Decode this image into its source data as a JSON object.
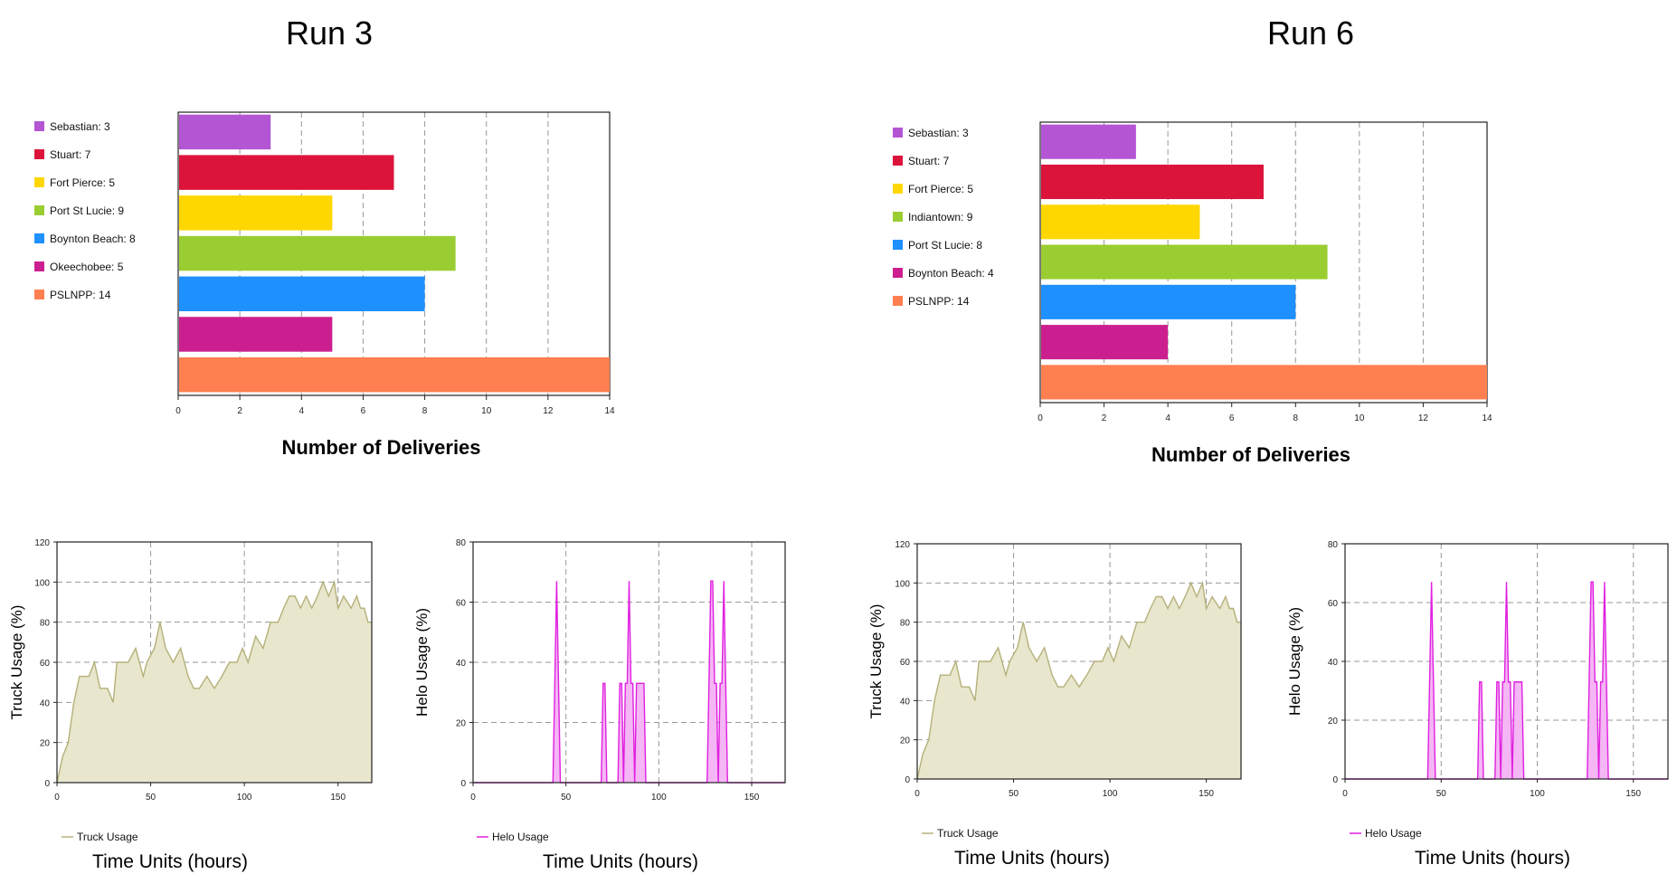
{
  "run_titles": [
    "Run 3",
    "Run 6"
  ],
  "colors": {
    "truck_line": "#b5b07a",
    "truck_fill": "#e8e6cc",
    "helo_line": "#e020e0",
    "helo_fill": "#f4b6f4",
    "grid": "#999999"
  },
  "chart_data": [
    {
      "type": "bar",
      "orientation": "horizontal",
      "run": "Run 3",
      "categories": [
        "Sebastian",
        "Stuart",
        "Fort Pierce",
        "Port St Lucie",
        "Boynton Beach",
        "Okeechobee",
        "PSLNPP"
      ],
      "values": [
        3,
        7,
        5,
        9,
        8,
        5,
        14
      ],
      "legend": [
        "Sebastian: 3",
        "Stuart: 7",
        "Fort Pierce: 5",
        "Port St Lucie: 9",
        "Boynton Beach: 8",
        "Okeechobee: 5",
        "PSLNPP: 14"
      ],
      "colors": [
        "#b455d4",
        "#dc143c",
        "#ffd700",
        "#9acd32",
        "#1e90ff",
        "#cc1f8f",
        "#ff7f50"
      ],
      "xlabel": "Number of Deliveries",
      "xlim": [
        0,
        14
      ],
      "xticks": [
        0,
        2,
        4,
        6,
        8,
        10,
        12,
        14
      ],
      "legend_position": "left",
      "grid": true
    },
    {
      "type": "bar",
      "orientation": "horizontal",
      "run": "Run 6",
      "categories": [
        "Sebastian",
        "Stuart",
        "Fort Pierce",
        "Indiantown",
        "Port St Lucie",
        "Boynton Beach",
        "PSLNPP"
      ],
      "values": [
        3,
        7,
        5,
        9,
        8,
        4,
        14
      ],
      "legend": [
        "Sebastian: 3",
        "Stuart: 7",
        "Fort Pierce: 5",
        "Indiantown: 9",
        "Port St Lucie: 8",
        "Boynton Beach: 4",
        "PSLNPP: 14"
      ],
      "colors": [
        "#b455d4",
        "#dc143c",
        "#ffd700",
        "#9acd32",
        "#1e90ff",
        "#cc1f8f",
        "#ff7f50"
      ],
      "xlabel": "Number of Deliveries",
      "xlim": [
        0,
        14
      ],
      "xticks": [
        0,
        2,
        4,
        6,
        8,
        10,
        12,
        14
      ],
      "legend_position": "left",
      "grid": true
    },
    {
      "type": "area",
      "run": "Run 3",
      "series_name": "Truck Usage",
      "legend": "Truck Usage",
      "ylabel": "Truck Usage (%)",
      "xlabel": "Time Units (hours)",
      "xlim": [
        0,
        168
      ],
      "ylim": [
        0,
        120
      ],
      "xticks": [
        0,
        50,
        100,
        150
      ],
      "yticks": [
        0,
        20,
        40,
        60,
        80,
        100,
        120
      ],
      "legend_position": "bottom-left",
      "grid": true,
      "x": [
        0,
        3,
        6,
        9,
        12,
        14,
        17,
        20,
        23,
        27,
        30,
        32,
        35,
        38,
        42,
        46,
        48,
        52,
        55,
        58,
        62,
        66,
        70,
        73,
        76,
        80,
        84,
        88,
        92,
        96,
        99,
        102,
        106,
        110,
        114,
        118,
        121,
        124,
        127,
        130,
        133,
        136,
        139,
        142,
        145,
        148,
        150,
        153,
        157,
        160,
        162,
        164,
        166,
        168
      ],
      "y": [
        0,
        13,
        20,
        40,
        53,
        53,
        53,
        60,
        47,
        47,
        40,
        60,
        60,
        60,
        67,
        53,
        60,
        67,
        80,
        67,
        60,
        67,
        53,
        47,
        47,
        53,
        47,
        53,
        60,
        60,
        67,
        60,
        73,
        67,
        80,
        80,
        87,
        93,
        93,
        87,
        93,
        87,
        93,
        100,
        93,
        100,
        87,
        93,
        87,
        93,
        87,
        87,
        80,
        80
      ]
    },
    {
      "type": "area",
      "run": "Run 3",
      "series_name": "Helo Usage",
      "legend": "Helo Usage",
      "ylabel": "Helo Usage (%)",
      "xlabel": "Time Units (hours)",
      "xlim": [
        0,
        168
      ],
      "ylim": [
        0,
        80
      ],
      "xticks": [
        0,
        50,
        100,
        150
      ],
      "yticks": [
        0,
        20,
        40,
        60,
        80
      ],
      "legend_position": "bottom-left",
      "grid": true,
      "x": [
        0,
        43,
        44,
        45,
        46,
        47,
        48,
        69,
        70,
        71,
        72,
        78,
        79,
        80,
        81,
        82,
        83,
        84,
        85,
        86,
        87,
        88,
        89,
        90,
        91,
        92,
        93,
        94,
        126,
        127,
        128,
        129,
        130,
        131,
        132,
        133,
        134,
        135,
        136,
        137,
        138,
        168
      ],
      "y": [
        0,
        0,
        33,
        67,
        33,
        0,
        0,
        0,
        33,
        33,
        0,
        0,
        33,
        33,
        0,
        33,
        33,
        67,
        33,
        33,
        0,
        33,
        33,
        33,
        33,
        33,
        0,
        0,
        0,
        33,
        67,
        67,
        33,
        33,
        0,
        33,
        33,
        67,
        33,
        0,
        0,
        0
      ]
    },
    {
      "type": "area",
      "run": "Run 6",
      "series_name": "Truck Usage",
      "legend": "Truck Usage",
      "ylabel": "Truck Usage (%)",
      "xlabel": "Time Units (hours)",
      "xlim": [
        0,
        168
      ],
      "ylim": [
        0,
        120
      ],
      "xticks": [
        0,
        50,
        100,
        150
      ],
      "yticks": [
        0,
        20,
        40,
        60,
        80,
        100,
        120
      ],
      "legend_position": "bottom-left",
      "grid": true,
      "x": [
        0,
        3,
        6,
        9,
        12,
        14,
        17,
        20,
        23,
        27,
        30,
        32,
        35,
        38,
        42,
        46,
        48,
        52,
        55,
        58,
        62,
        66,
        70,
        73,
        76,
        80,
        84,
        88,
        92,
        96,
        99,
        102,
        106,
        110,
        114,
        118,
        121,
        124,
        127,
        130,
        133,
        136,
        139,
        142,
        145,
        148,
        150,
        153,
        157,
        160,
        162,
        164,
        166,
        168
      ],
      "y": [
        0,
        13,
        20,
        40,
        53,
        53,
        53,
        60,
        47,
        47,
        40,
        60,
        60,
        60,
        67,
        53,
        60,
        67,
        80,
        67,
        60,
        67,
        53,
        47,
        47,
        53,
        47,
        53,
        60,
        60,
        67,
        60,
        73,
        67,
        80,
        80,
        87,
        93,
        93,
        87,
        93,
        87,
        93,
        100,
        93,
        100,
        87,
        93,
        87,
        93,
        87,
        87,
        80,
        80
      ]
    },
    {
      "type": "area",
      "run": "Run 6",
      "series_name": "Helo Usage",
      "legend": "Helo Usage",
      "ylabel": "Helo Usage (%)",
      "xlabel": "Time Units (hours)",
      "xlim": [
        0,
        168
      ],
      "ylim": [
        0,
        80
      ],
      "xticks": [
        0,
        50,
        100,
        150
      ],
      "yticks": [
        0,
        20,
        40,
        60,
        80
      ],
      "legend_position": "bottom-left",
      "grid": true,
      "x": [
        0,
        43,
        44,
        45,
        46,
        47,
        48,
        69,
        70,
        71,
        72,
        78,
        79,
        80,
        81,
        82,
        83,
        84,
        85,
        86,
        87,
        88,
        89,
        90,
        91,
        92,
        93,
        94,
        126,
        127,
        128,
        129,
        130,
        131,
        132,
        133,
        134,
        135,
        136,
        137,
        138,
        168
      ],
      "y": [
        0,
        0,
        33,
        67,
        33,
        0,
        0,
        0,
        33,
        33,
        0,
        0,
        33,
        33,
        0,
        33,
        33,
        67,
        33,
        33,
        0,
        33,
        33,
        33,
        33,
        33,
        0,
        0,
        0,
        33,
        67,
        67,
        33,
        33,
        0,
        33,
        33,
        67,
        33,
        0,
        0,
        0
      ]
    }
  ]
}
